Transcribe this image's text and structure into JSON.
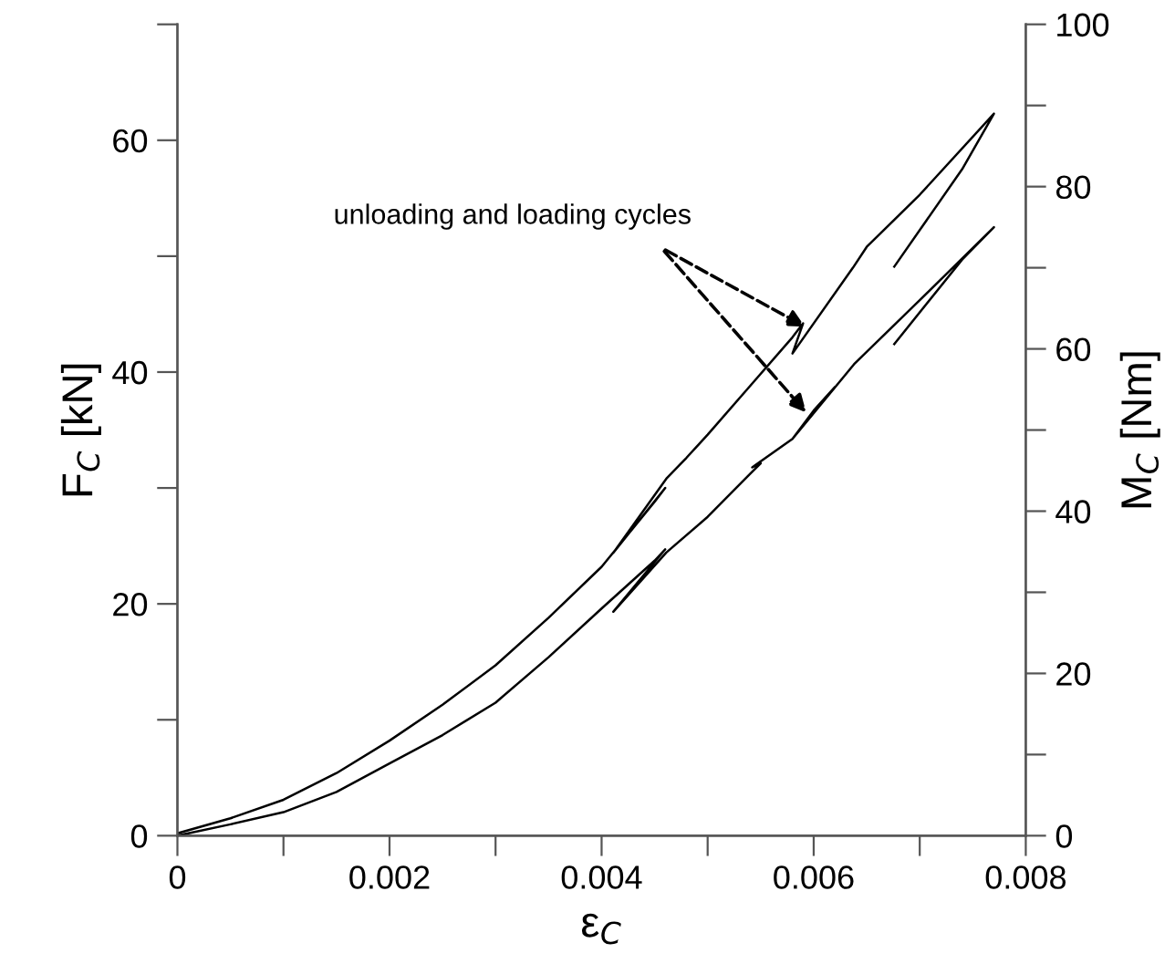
{
  "chart_data": {
    "type": "line",
    "xlabel": "ε$_{C}$",
    "ylabel": "F$_{C}$ [kN]",
    "y2label": "M$_{C}$ [Nm]",
    "series": [
      {
        "color": "#000000",
        "x": [
          0,
          0.0005,
          0.001,
          0.0015,
          0.002,
          0.0025,
          0.003,
          0.0035,
          0.004,
          0.0045,
          0.0046,
          0.00411,
          0.00461,
          0.0048,
          0.005,
          0.0054,
          0.0058,
          0.0059,
          0.0058,
          0.00637,
          0.0065,
          0.007,
          0.0077,
          0.0074,
          0.00676
        ],
        "values": [
          0.2,
          1.5,
          3.1,
          5.4,
          8.2,
          11.3,
          14.7,
          18.8,
          23.2,
          28.8,
          30.0,
          24.4,
          30.8,
          32.6,
          34.6,
          38.8,
          43.0,
          44.2,
          41.6,
          49.0,
          50.8,
          55.3,
          62.3,
          57.5,
          49.1
        ]
      },
      {
        "color": "#000000",
        "axis": "y2",
        "x": [
          0,
          0.0005,
          0.001,
          0.0015,
          0.002,
          0.0025,
          0.003,
          0.0035,
          0.004,
          0.0045,
          0.0046,
          0.00411,
          0.00461,
          0.005,
          0.0054,
          0.0055,
          0.00542,
          0.0058,
          0.006,
          0.0062,
          0.0058,
          0.00638,
          0.007,
          0.0077,
          0.0074,
          0.00676
        ],
        "values": [
          0,
          1.4,
          2.9,
          5.4,
          8.9,
          12.4,
          16.4,
          22.0,
          28.0,
          33.9,
          35.3,
          27.6,
          34.9,
          39.3,
          44.6,
          45.9,
          45.4,
          48.9,
          52.4,
          55.3,
          48.9,
          58.1,
          66.0,
          75.0,
          71.0,
          60.6
        ]
      }
    ],
    "annotations": [
      {
        "text": "unloading and loading cycles",
        "x": 0.00596,
        "y": 43.7
      }
    ],
    "xlim": [
      0,
      0.008
    ],
    "xticks": [
      0,
      {
        "value": 0.001,
        "label": null
      },
      0.002,
      {
        "value": 0.003,
        "label": null
      },
      0.004,
      {
        "value": 0.005,
        "label": null
      },
      0.006,
      {
        "value": 0.007,
        "label": null
      },
      0.008
    ],
    "ylim": [
      0,
      70
    ],
    "yticks": [
      0,
      {
        "value": 10,
        "label": null
      },
      20,
      {
        "value": 30,
        "label": null
      },
      40,
      {
        "value": 50,
        "label": null
      },
      60,
      {
        "value": 70,
        "label": null
      }
    ],
    "y2lim": [
      0,
      100
    ],
    "y2ticks": [
      0,
      {
        "value": 10,
        "label": null
      },
      20,
      {
        "value": 30,
        "label": null
      },
      40,
      {
        "value": 50,
        "label": null
      },
      60,
      {
        "value": 70,
        "label": null
      },
      80,
      {
        "value": 90,
        "label": null
      },
      100
    ],
    "grid": false,
    "marker": "none",
    "line_style": "solid"
  }
}
